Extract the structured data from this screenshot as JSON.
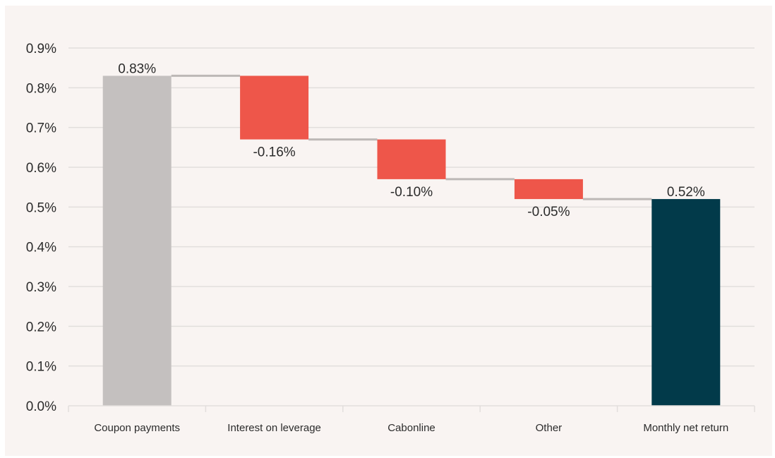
{
  "chart_data": {
    "type": "bar",
    "subtype": "waterfall",
    "categories": [
      "Coupon payments",
      "Interest on leverage",
      "Cabonline",
      "Other",
      "Monthly net return"
    ],
    "values": [
      0.83,
      -0.16,
      -0.1,
      -0.05,
      0.52
    ],
    "value_labels": [
      "0.83%",
      "-0.16%",
      "-0.10%",
      "-0.05%",
      "0.52%"
    ],
    "bar_roles": [
      "start",
      "decrease",
      "decrease",
      "decrease",
      "total"
    ],
    "ylim": [
      0.0,
      0.9
    ],
    "yticks": [
      0.0,
      0.1,
      0.2,
      0.3,
      0.4,
      0.5,
      0.6,
      0.7,
      0.8,
      0.9
    ],
    "ytick_labels": [
      "0.0%",
      "0.1%",
      "0.2%",
      "0.3%",
      "0.4%",
      "0.5%",
      "0.6%",
      "0.7%",
      "0.8%",
      "0.9%"
    ],
    "grid": true,
    "legend": "none",
    "colors": {
      "start": "#c4c0bf",
      "decrease": "#ee564a",
      "total": "#023a4a",
      "connector": "#bdb8b6",
      "grid": "#e2dedc",
      "background": "#f9f4f2"
    }
  }
}
